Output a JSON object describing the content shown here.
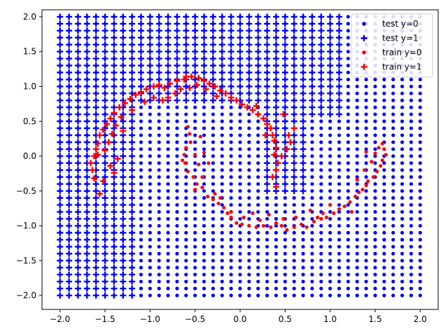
{
  "chart_data": {
    "type": "scatter",
    "xlim": [
      -2.2,
      2.2
    ],
    "ylim": [
      -2.2,
      2.1
    ],
    "x_ticks": [
      -2.0,
      -1.5,
      -1.0,
      -0.5,
      0.0,
      0.5,
      1.0,
      1.5,
      2.0
    ],
    "x_tick_labels": [
      "−2.0",
      "−1.5",
      "−1.0",
      "−0.5",
      "0.0",
      "0.5",
      "1.0",
      "1.5",
      "2.0"
    ],
    "y_ticks": [
      -2.0,
      -1.5,
      -1.0,
      -0.5,
      0.0,
      0.5,
      1.0,
      1.5,
      2.0
    ],
    "y_tick_labels": [
      "−2.0",
      "−1.5",
      "−1.0",
      "−0.5",
      "0.0",
      "0.5",
      "1.0",
      "1.5",
      "2.0"
    ],
    "grid": false,
    "legend_position": "top-right",
    "test_grid": {
      "x_range": [
        -2.0,
        2.0
      ],
      "y_range": [
        -2.0,
        2.0
      ],
      "n_x": 41,
      "n_y": 41,
      "class1_region": {
        "left_of_x": -1.15,
        "upper_band_above_y": 0.75,
        "upper_band_x_range": [
          -1.15,
          1.15
        ],
        "center_notch": {
          "x_range": [
            0.25,
            0.75
          ],
          "y_from_top_to": -0.5
        },
        "top_right_x_range": [
          0.75,
          1.15
        ],
        "top_right_below_y_to": 0.55
      }
    },
    "series": [
      {
        "name": "test y=0",
        "marker": "dot",
        "color": "#0000ff"
      },
      {
        "name": "test y=1",
        "marker": "plus",
        "color": "#0000ff"
      },
      {
        "name": "train y=0",
        "marker": "dot",
        "color": "#ff0000",
        "points": [
          [
            -0.58,
            0.42
          ],
          [
            -0.56,
            0.32
          ],
          [
            -0.6,
            0.12
          ],
          [
            -0.62,
            0.02
          ],
          [
            -0.61,
            -0.1
          ],
          [
            -0.58,
            -0.22
          ],
          [
            -0.52,
            -0.3
          ],
          [
            -0.48,
            -0.4
          ],
          [
            -0.5,
            -0.48
          ],
          [
            -0.42,
            -0.45
          ],
          [
            -0.36,
            -0.58
          ],
          [
            -0.3,
            -0.62
          ],
          [
            -0.24,
            -0.68
          ],
          [
            -0.18,
            -0.74
          ],
          [
            -0.14,
            -0.82
          ],
          [
            -0.1,
            -0.88
          ],
          [
            -0.04,
            -0.96
          ],
          [
            0.02,
            -0.98
          ],
          [
            0.1,
            -1.0
          ],
          [
            0.18,
            -1.02
          ],
          [
            0.26,
            -1.0
          ],
          [
            0.34,
            -1.02
          ],
          [
            0.4,
            -0.96
          ],
          [
            0.46,
            -1.0
          ],
          [
            0.52,
            -1.06
          ],
          [
            0.6,
            -1.02
          ],
          [
            0.68,
            -0.98
          ],
          [
            0.74,
            -1.02
          ],
          [
            0.82,
            -0.94
          ],
          [
            0.9,
            -0.9
          ],
          [
            0.96,
            -0.88
          ],
          [
            1.04,
            -0.82
          ],
          [
            1.1,
            -0.76
          ],
          [
            1.16,
            -0.72
          ],
          [
            1.22,
            -0.66
          ],
          [
            1.28,
            -0.58
          ],
          [
            1.32,
            -0.52
          ],
          [
            1.36,
            -0.48
          ],
          [
            1.4,
            -0.42
          ],
          [
            1.42,
            -0.36
          ],
          [
            1.48,
            -0.3
          ],
          [
            1.52,
            -0.22
          ],
          [
            1.56,
            -0.14
          ],
          [
            1.58,
            -0.06
          ],
          [
            1.62,
            0.02
          ],
          [
            1.6,
            0.1
          ],
          [
            1.58,
            0.18
          ],
          [
            1.54,
            0.12
          ],
          [
            1.5,
            0.04
          ],
          [
            1.46,
            -0.08
          ],
          [
            1.4,
            0.06
          ],
          [
            1.38,
            -0.2
          ],
          [
            1.3,
            -0.34
          ],
          [
            1.24,
            -0.8
          ],
          [
            1.0,
            -0.7
          ],
          [
            0.92,
            -0.82
          ],
          [
            0.86,
            -0.88
          ],
          [
            0.78,
            -0.78
          ],
          [
            0.62,
            -0.88
          ],
          [
            0.48,
            -0.9
          ],
          [
            0.32,
            -0.84
          ],
          [
            0.22,
            -0.92
          ],
          [
            0.14,
            -0.82
          ],
          [
            0.04,
            -0.88
          ],
          [
            -0.1,
            -0.8
          ],
          [
            -0.22,
            -0.6
          ],
          [
            -0.28,
            -0.54
          ],
          [
            -0.42,
            -0.3
          ],
          [
            -0.46,
            -0.12
          ],
          [
            -0.5,
            0.02
          ],
          [
            -0.55,
            0.2
          ],
          [
            -0.4,
            0.05
          ],
          [
            -0.35,
            -0.1
          ],
          [
            -0.44,
            0.28
          ],
          [
            -0.64,
            -0.06
          ]
        ]
      },
      {
        "name": "train y=1",
        "marker": "plus",
        "color": "#ff0000",
        "points": [
          [
            -1.62,
            -0.32
          ],
          [
            -1.64,
            -0.2
          ],
          [
            -1.66,
            -0.1
          ],
          [
            -1.62,
            0.0
          ],
          [
            -1.6,
            0.1
          ],
          [
            -1.58,
            0.18
          ],
          [
            -1.56,
            0.3
          ],
          [
            -1.52,
            0.38
          ],
          [
            -1.48,
            0.46
          ],
          [
            -1.44,
            0.54
          ],
          [
            -1.4,
            0.62
          ],
          [
            -1.34,
            0.7
          ],
          [
            -1.28,
            0.76
          ],
          [
            -1.22,
            0.82
          ],
          [
            -1.16,
            0.88
          ],
          [
            -1.1,
            0.92
          ],
          [
            -1.04,
            0.96
          ],
          [
            -0.96,
            1.0
          ],
          [
            -0.9,
            1.02
          ],
          [
            -0.84,
            0.98
          ],
          [
            -0.78,
            1.04
          ],
          [
            -0.7,
            1.08
          ],
          [
            -0.62,
            1.1
          ],
          [
            -0.54,
            1.14
          ],
          [
            -0.46,
            1.12
          ],
          [
            -0.4,
            1.08
          ],
          [
            -0.34,
            1.04
          ],
          [
            -0.28,
            1.0
          ],
          [
            -0.22,
            0.94
          ],
          [
            -0.16,
            0.9
          ],
          [
            -0.1,
            0.84
          ],
          [
            -0.04,
            0.8
          ],
          [
            0.02,
            0.74
          ],
          [
            0.08,
            0.7
          ],
          [
            0.14,
            0.66
          ],
          [
            0.2,
            0.6
          ],
          [
            0.26,
            0.54
          ],
          [
            0.3,
            0.46
          ],
          [
            0.34,
            0.4
          ],
          [
            0.36,
            0.3
          ],
          [
            0.38,
            0.22
          ],
          [
            0.4,
            0.12
          ],
          [
            0.38,
            0.02
          ],
          [
            0.42,
            -0.1
          ],
          [
            0.4,
            -0.2
          ],
          [
            0.36,
            -0.3
          ],
          [
            0.4,
            -0.44
          ],
          [
            0.46,
            0.0
          ],
          [
            0.52,
            0.1
          ],
          [
            0.56,
            0.2
          ],
          [
            0.54,
            0.3
          ],
          [
            0.6,
            0.4
          ],
          [
            -1.4,
            -0.24
          ],
          [
            -1.44,
            -0.14
          ],
          [
            -1.36,
            -0.04
          ],
          [
            -1.5,
            0.08
          ],
          [
            -1.46,
            0.2
          ],
          [
            -1.3,
            0.36
          ],
          [
            -1.38,
            0.44
          ],
          [
            -1.32,
            0.56
          ],
          [
            -1.2,
            0.66
          ],
          [
            -1.06,
            0.78
          ],
          [
            -0.96,
            0.84
          ],
          [
            -0.86,
            0.8
          ],
          [
            -0.72,
            0.9
          ],
          [
            -0.66,
            0.96
          ],
          [
            -0.56,
            0.98
          ],
          [
            -0.48,
            1.02
          ],
          [
            -0.38,
            0.96
          ],
          [
            -0.26,
            0.86
          ],
          [
            -1.56,
            -0.54
          ],
          [
            -1.52,
            -0.36
          ],
          [
            -1.58,
            0.02
          ],
          [
            -1.42,
            0.32
          ],
          [
            0.18,
            0.72
          ],
          [
            0.28,
            0.3
          ],
          [
            0.48,
            0.6
          ],
          [
            -0.6,
            1.14
          ],
          [
            -0.8,
            0.84
          ]
        ]
      }
    ]
  }
}
